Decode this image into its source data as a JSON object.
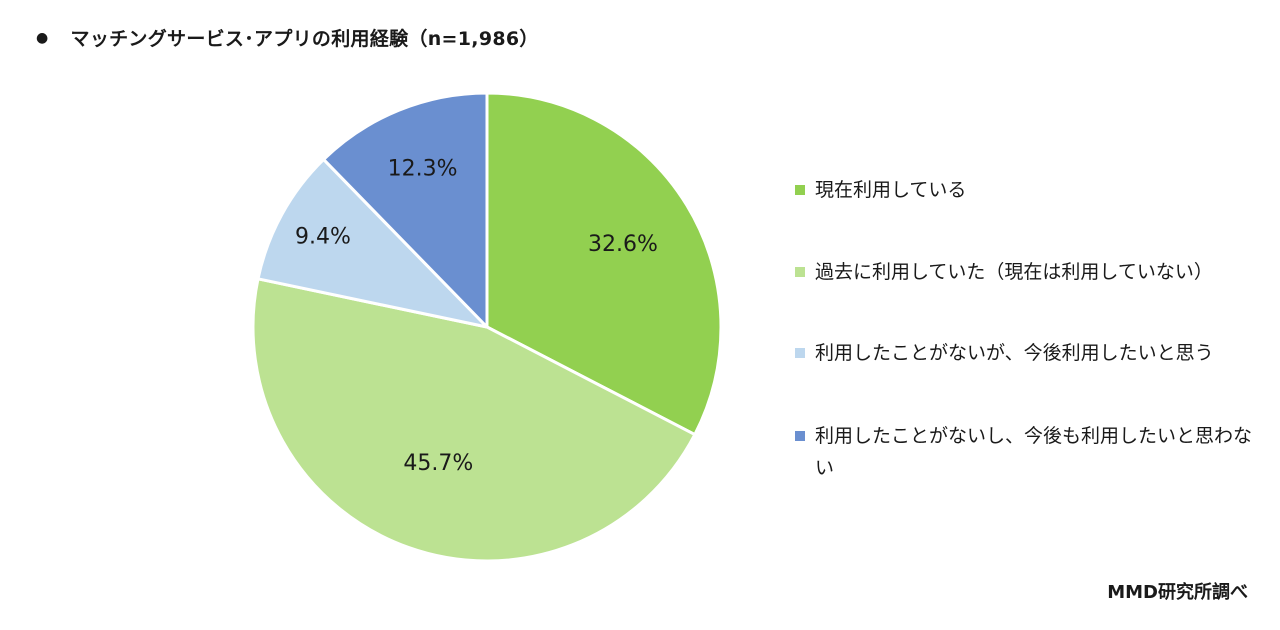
{
  "title": {
    "bullet": "●",
    "text": "マッチングサービス･アプリの利用経験（n=1,986）"
  },
  "source": "MMD研究所調べ",
  "chart_data": {
    "type": "pie",
    "title": "マッチングサービス･アプリの利用経験（n=1,986）",
    "slices": [
      {
        "label": "現在利用している",
        "value": 32.6,
        "display": "32.6%",
        "color": "#92d050"
      },
      {
        "label": "過去に利用していた（現在は利用していない）",
        "value": 45.7,
        "display": "45.7%",
        "color": "#bce292"
      },
      {
        "label": "利用したことがないが、今後利用したいと思う",
        "value": 9.4,
        "display": "9.4%",
        "color": "#bdd7ee"
      },
      {
        "label": "利用したことがないし、今後も利用したいと思わない",
        "value": 12.3,
        "display": "12.3%",
        "color": "#6a8fd0"
      }
    ],
    "start": "12 o'clock",
    "direction": "clockwise",
    "legend": "right"
  }
}
